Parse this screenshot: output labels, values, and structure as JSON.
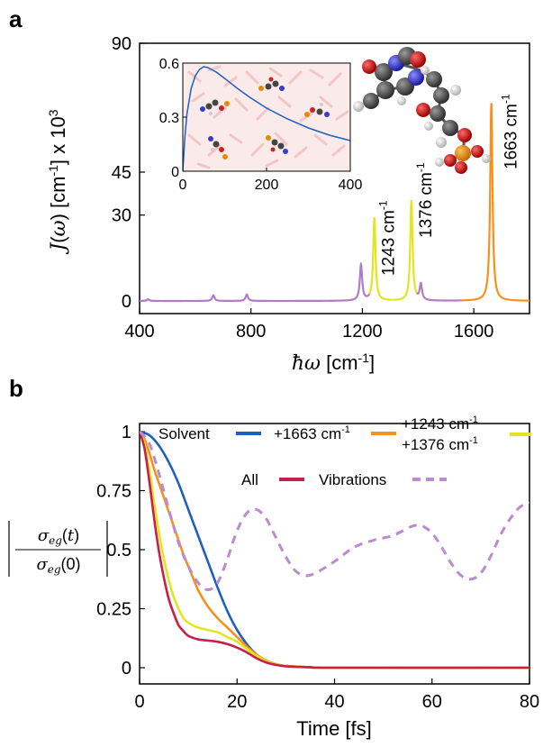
{
  "panel_labels": [
    "a",
    "b"
  ],
  "chart_data": [
    {
      "type": "line",
      "panel": "a",
      "xlabel": "ħω [cm-1]",
      "ylabel": "J(ω) [cm-1] x 10^3",
      "xlim": [
        400,
        1800
      ],
      "ylim": [
        0,
        90
      ],
      "x_ticks": [
        400,
        800,
        1200,
        1600
      ],
      "y_ticks": [
        0,
        30,
        45,
        90
      ],
      "grid": false,
      "peaks": [
        {
          "x": 430,
          "y": 0.6,
          "color": "#b07cc6"
        },
        {
          "x": 665,
          "y": 2.0,
          "color": "#b07cc6"
        },
        {
          "x": 785,
          "y": 2.3,
          "color": "#b07cc6"
        },
        {
          "x": 1195,
          "y": 12.5,
          "color": "#b07cc6"
        },
        {
          "x": 1243,
          "y": 29,
          "color": "#e3e61e",
          "label": "1243 cm-1"
        },
        {
          "x": 1376,
          "y": 35,
          "color": "#e3e61e",
          "label": "1376 cm-1"
        },
        {
          "x": 1410,
          "y": 5.5,
          "color": "#b07cc6"
        },
        {
          "x": 1663,
          "y": 69,
          "color": "#f6911e",
          "label": "1663 cm-1"
        }
      ],
      "baseline": 0,
      "inset": {
        "type": "line",
        "xlim": [
          0,
          400
        ],
        "ylim": [
          0,
          0.6
        ],
        "x_ticks": [
          0,
          200,
          400
        ],
        "y_ticks": [
          0,
          0.3,
          0.6
        ],
        "color": "#1f5fbf",
        "x": [
          0,
          5,
          10,
          20,
          30,
          40,
          50,
          60,
          80,
          100,
          130,
          160,
          200,
          250,
          300,
          350,
          400
        ],
        "y": [
          0,
          0.19,
          0.32,
          0.46,
          0.53,
          0.565,
          0.58,
          0.575,
          0.55,
          0.515,
          0.46,
          0.41,
          0.35,
          0.29,
          0.24,
          0.2,
          0.17
        ]
      }
    },
    {
      "type": "line",
      "panel": "b",
      "xlabel": "Time [fs]",
      "ylabel": "|σeg(t) / σeg(0)|",
      "xlim": [
        0,
        80
      ],
      "ylim": [
        0,
        1
      ],
      "x_ticks": [
        0,
        20,
        40,
        60,
        80
      ],
      "y_ticks": [
        0,
        0.25,
        0.5,
        0.75,
        1
      ],
      "grid": false,
      "legend": [
        {
          "label": "Solvent",
          "color": "#1f5fbf"
        },
        {
          "label": "+1663 cm-1",
          "color": "#f6911e"
        },
        {
          "label": "+1243 cm-1\n+1376 cm-1",
          "color": "#e3e61e"
        },
        {
          "label": "All",
          "color": "#c81e4b"
        },
        {
          "label": "Vibrations",
          "color": "#b98bd1",
          "dashed": true
        }
      ],
      "series": [
        {
          "name": "Solvent",
          "color": "#1f5fbf",
          "x": [
            0,
            2,
            4,
            6,
            8,
            10,
            12,
            14,
            16,
            18,
            20,
            22,
            24,
            26,
            28,
            30,
            35,
            40,
            80
          ],
          "y": [
            1,
            0.985,
            0.94,
            0.87,
            0.78,
            0.67,
            0.56,
            0.45,
            0.34,
            0.24,
            0.16,
            0.1,
            0.055,
            0.03,
            0.015,
            0.008,
            0.002,
            0,
            0
          ]
        },
        {
          "name": "+1663 cm-1",
          "color": "#f6911e",
          "x": [
            0,
            1,
            2,
            3,
            4,
            5,
            6,
            7,
            8,
            9,
            10,
            12,
            14,
            16,
            18,
            20,
            22,
            24,
            26,
            28,
            30,
            35,
            40,
            80
          ],
          "y": [
            1,
            0.97,
            0.91,
            0.84,
            0.78,
            0.72,
            0.66,
            0.6,
            0.54,
            0.48,
            0.43,
            0.33,
            0.26,
            0.21,
            0.17,
            0.13,
            0.09,
            0.055,
            0.03,
            0.015,
            0.008,
            0.002,
            0,
            0
          ]
        },
        {
          "name": "+1243 cm-1 +1376 cm-1",
          "color": "#e3e61e",
          "x": [
            0,
            1,
            2,
            3,
            4,
            5,
            6,
            7,
            8,
            9,
            10,
            12,
            14,
            16,
            18,
            20,
            22,
            24,
            26,
            28,
            30,
            35,
            40,
            80
          ],
          "y": [
            1,
            0.95,
            0.84,
            0.7,
            0.57,
            0.46,
            0.37,
            0.3,
            0.25,
            0.21,
            0.19,
            0.17,
            0.16,
            0.15,
            0.13,
            0.11,
            0.08,
            0.05,
            0.028,
            0.014,
            0.007,
            0.002,
            0,
            0
          ]
        },
        {
          "name": "All",
          "color": "#c81e4b",
          "x": [
            0,
            1,
            2,
            3,
            4,
            5,
            6,
            7,
            8,
            9,
            10,
            12,
            14,
            16,
            18,
            20,
            22,
            24,
            26,
            28,
            30,
            35,
            40,
            80
          ],
          "y": [
            1,
            0.93,
            0.79,
            0.63,
            0.49,
            0.38,
            0.29,
            0.23,
            0.18,
            0.155,
            0.135,
            0.12,
            0.115,
            0.11,
            0.1,
            0.085,
            0.065,
            0.04,
            0.022,
            0.012,
            0.006,
            0.002,
            0,
            0
          ]
        },
        {
          "name": "Vibrations",
          "color": "#b98bd1",
          "dashed": true,
          "x": [
            0,
            2,
            4,
            6,
            8,
            10,
            12,
            14,
            16,
            18,
            20,
            22,
            24,
            26,
            28,
            30,
            32,
            34,
            36,
            40,
            44,
            48,
            52,
            56,
            58,
            60,
            62,
            64,
            66,
            68,
            70,
            72,
            74,
            76,
            78,
            80
          ],
          "y": [
            1,
            0.95,
            0.82,
            0.67,
            0.53,
            0.43,
            0.36,
            0.33,
            0.36,
            0.46,
            0.58,
            0.655,
            0.67,
            0.63,
            0.55,
            0.47,
            0.41,
            0.39,
            0.4,
            0.45,
            0.51,
            0.54,
            0.56,
            0.6,
            0.6,
            0.57,
            0.51,
            0.44,
            0.39,
            0.375,
            0.4,
            0.47,
            0.56,
            0.63,
            0.68,
            0.7
          ]
        }
      ]
    }
  ]
}
